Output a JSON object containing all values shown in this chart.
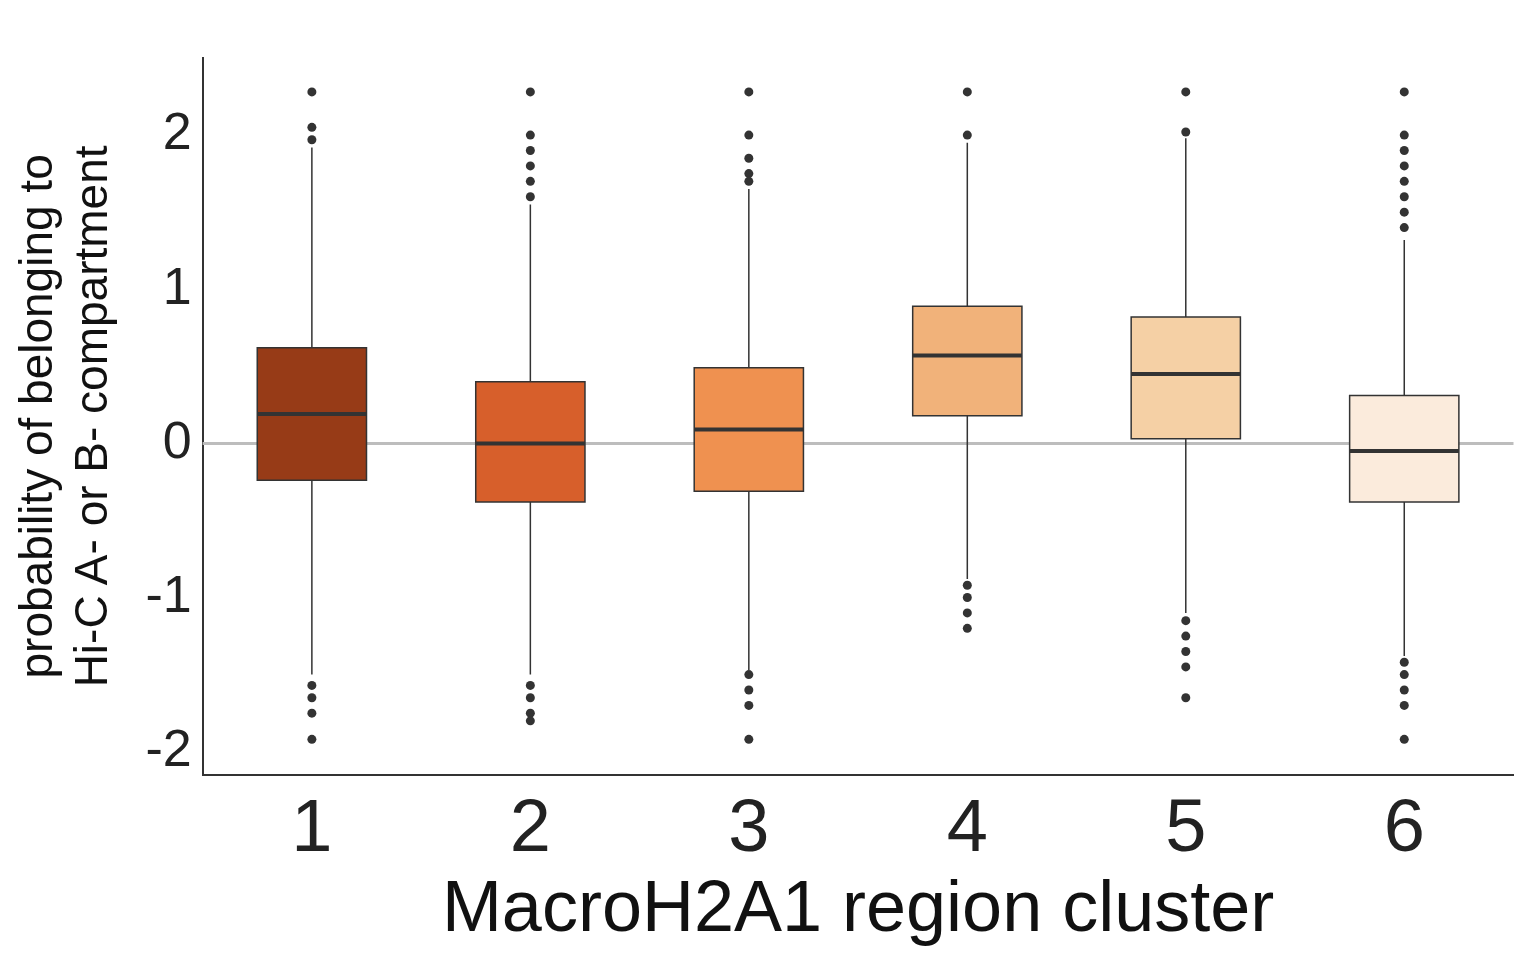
{
  "chart_data": {
    "type": "box",
    "xlabel": "MacroH2A1 region cluster",
    "ylabel": "probability of belonging to\nHi-C A- or B- compartment",
    "categories": [
      "1",
      "2",
      "3",
      "4",
      "5",
      "6"
    ],
    "colors": [
      "#973b17",
      "#d75f2b",
      "#ef9150",
      "#f1b27a",
      "#f5d0a5",
      "#fbebdc"
    ],
    "boxes": [
      {
        "low": -1.5,
        "q1": -0.24,
        "median": 0.19,
        "q3": 0.62,
        "high": 1.92,
        "outliers": [
          2.28,
          2.05,
          1.97,
          -1.57,
          -1.65,
          -1.75,
          -1.92
        ]
      },
      {
        "low": -1.5,
        "q1": -0.38,
        "median": 0,
        "q3": 0.4,
        "high": 1.55,
        "outliers": [
          2.28,
          2.0,
          1.9,
          1.8,
          1.7,
          1.6,
          -1.57,
          -1.65,
          -1.75,
          -1.8
        ]
      },
      {
        "low": -1.47,
        "q1": -0.31,
        "median": 0.09,
        "q3": 0.49,
        "high": 1.65,
        "outliers": [
          2.28,
          2.0,
          1.85,
          1.75,
          1.7,
          -1.5,
          -1.6,
          -1.7,
          -1.92
        ]
      },
      {
        "low": -0.88,
        "q1": 0.18,
        "median": 0.57,
        "q3": 0.89,
        "high": 1.95,
        "outliers": [
          2.28,
          2.0,
          -0.92,
          -1.0,
          -1.1,
          -1.2
        ]
      },
      {
        "low": -1.1,
        "q1": 0.03,
        "median": 0.45,
        "q3": 0.82,
        "high": 1.98,
        "outliers": [
          2.28,
          2.02,
          -1.15,
          -1.25,
          -1.35,
          -1.45,
          -1.65
        ]
      },
      {
        "low": -1.38,
        "q1": -0.38,
        "median": -0.05,
        "q3": 0.31,
        "high": 1.32,
        "outliers": [
          2.28,
          2.0,
          1.9,
          1.8,
          1.7,
          1.6,
          1.5,
          1.4,
          -1.42,
          -1.5,
          -1.6,
          -1.7,
          -1.92
        ]
      }
    ],
    "ylim": [
      -2.15,
      2.5
    ],
    "yticks": [
      -2,
      -1,
      0,
      1,
      2
    ],
    "grid": false,
    "legend": false,
    "ref_lines": [
      {
        "axis": "y",
        "value": 0,
        "color": "#bdbdbd"
      }
    ]
  }
}
